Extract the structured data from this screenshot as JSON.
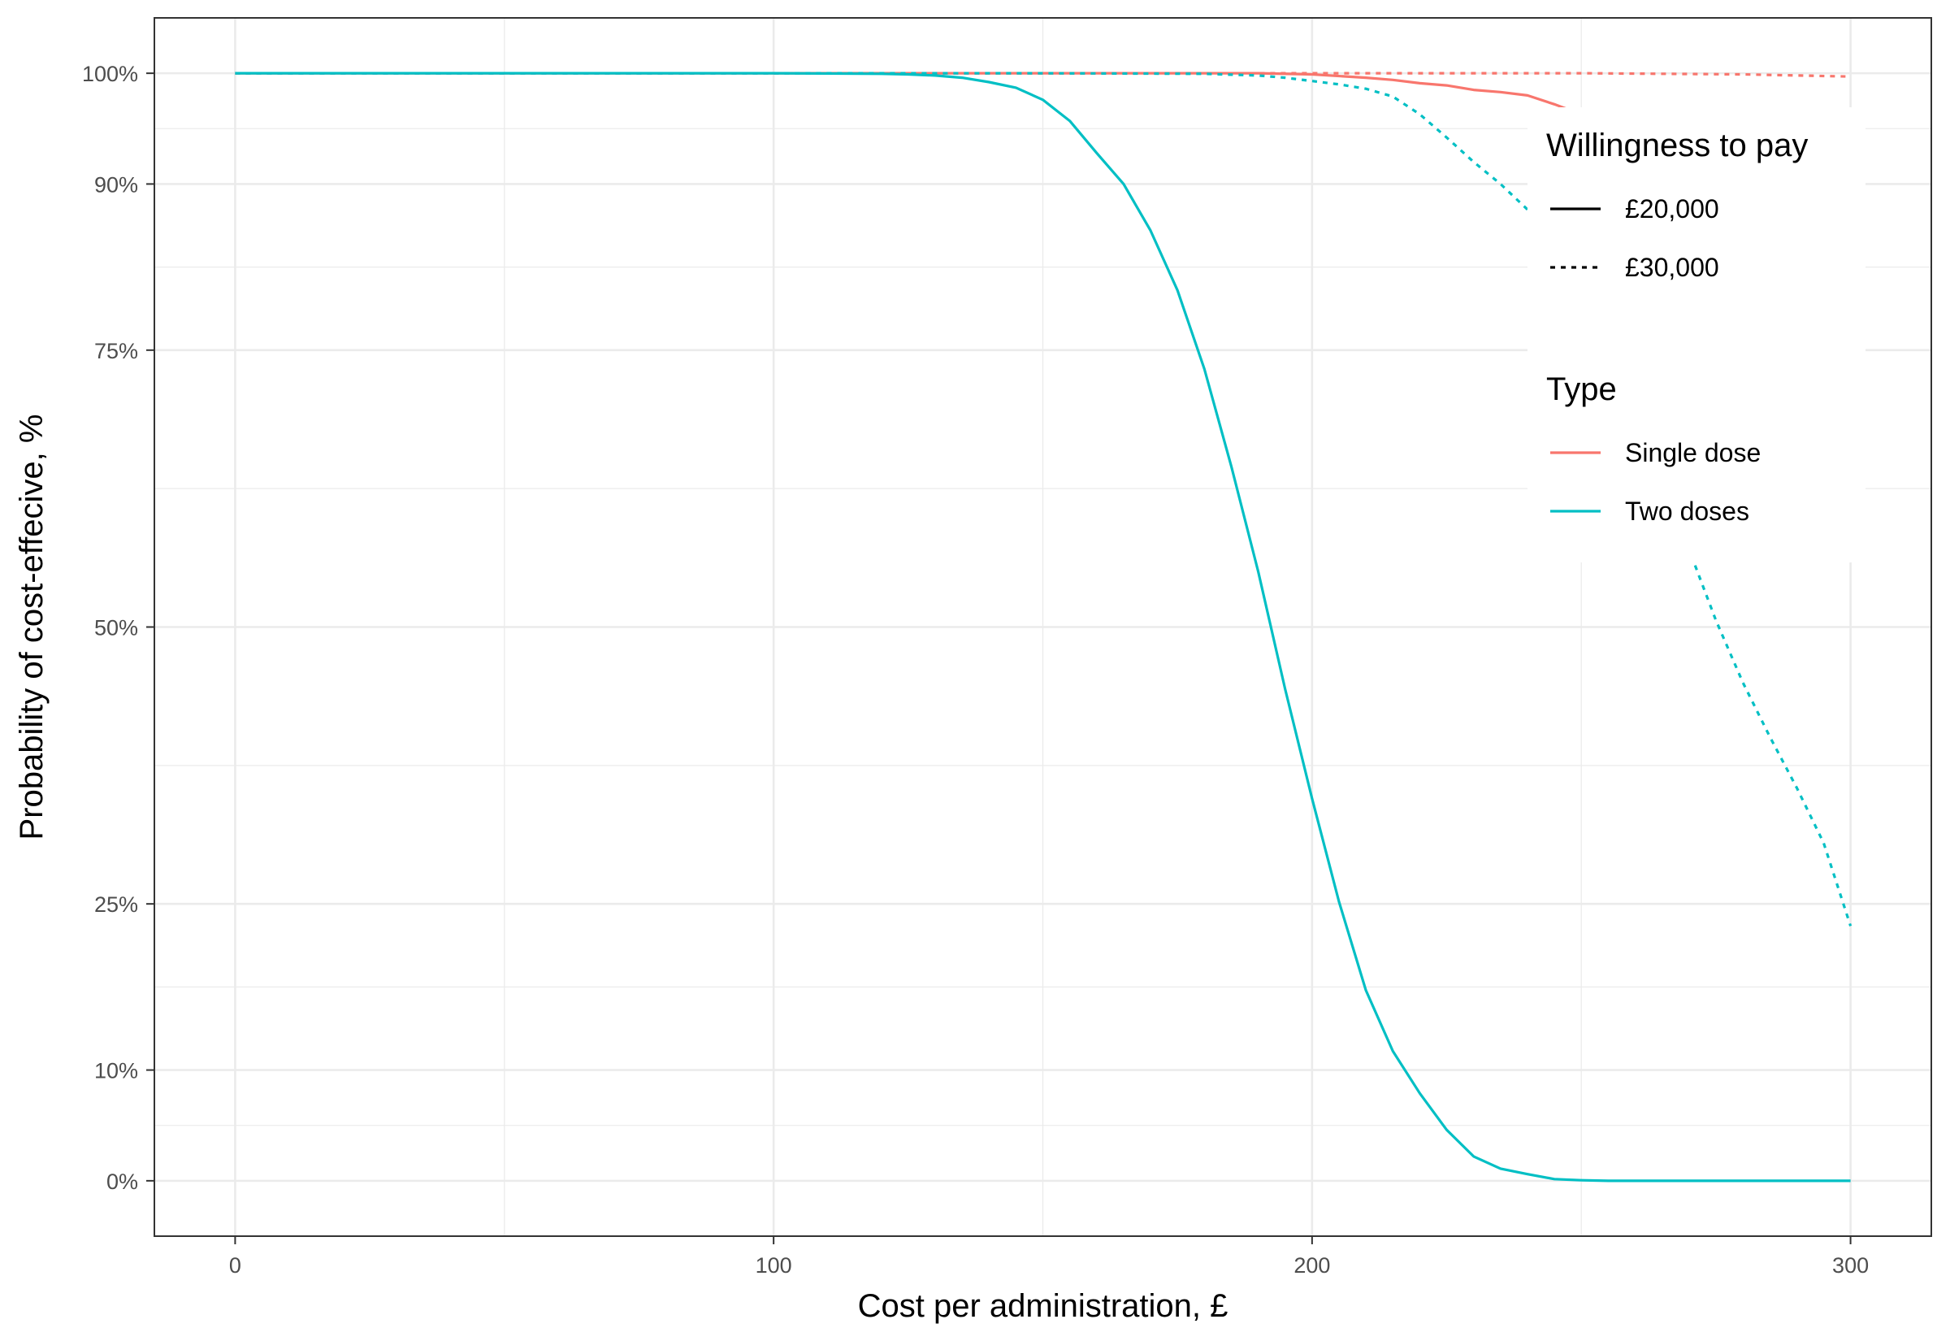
{
  "chart_data": {
    "type": "line",
    "xlabel": "Cost per administration, £",
    "ylabel": "Probability of cost-effecive, %",
    "xlim": [
      -15,
      315
    ],
    "ylim": [
      -5,
      105
    ],
    "x_ticks": [
      0,
      100,
      200,
      300
    ],
    "x_tick_labels": [
      "0",
      "100",
      "200",
      "300"
    ],
    "y_ticks": [
      0,
      10,
      25,
      50,
      75,
      90,
      100
    ],
    "y_tick_labels": [
      "0%",
      "10%",
      "25%",
      "50%",
      "75%",
      "90%",
      "100%"
    ],
    "grid": true,
    "legend_position": "right (inside plot, top-right)",
    "legends": [
      {
        "title": "Willingness to pay",
        "entries": [
          {
            "label": "£20,000",
            "linetype": "solid"
          },
          {
            "label": "£30,000",
            "linetype": "dashed"
          }
        ]
      },
      {
        "title": "Type",
        "entries": [
          {
            "label": "Single dose",
            "color": "#F8766D"
          },
          {
            "label": "Two doses",
            "color": "#00BFC4"
          }
        ]
      }
    ],
    "series": [
      {
        "type": "Single dose",
        "wtp": "£20,000",
        "color": "#F8766D",
        "linetype": "solid",
        "x": [
          0,
          50,
          100,
          130,
          150,
          170,
          190,
          200,
          210,
          215,
          220,
          225,
          230,
          235,
          240,
          245,
          250,
          255,
          260,
          265,
          270,
          275,
          280,
          285,
          290,
          295,
          300
        ],
        "y": [
          100,
          100,
          100,
          100,
          100,
          100,
          100,
          99.9,
          99.6,
          99.4,
          99.1,
          98.9,
          98.5,
          98.3,
          98,
          97.2,
          96.3,
          95.3,
          94,
          92.7,
          91,
          89.1,
          87,
          84.6,
          82,
          80,
          77.3
        ]
      },
      {
        "type": "Single dose",
        "wtp": "£30,000",
        "color": "#F8766D",
        "linetype": "dashed",
        "x": [
          0,
          100,
          150,
          200,
          250,
          280,
          300
        ],
        "y": [
          100,
          100,
          100,
          100,
          100,
          99.9,
          99.7
        ]
      },
      {
        "type": "Two doses",
        "wtp": "£20,000",
        "color": "#00BFC4",
        "linetype": "solid",
        "x": [
          0,
          50,
          100,
          120,
          125,
          130,
          135,
          140,
          145,
          150,
          155,
          160,
          165,
          170,
          175,
          180,
          185,
          190,
          195,
          200,
          205,
          210,
          215,
          220,
          225,
          230,
          235,
          240,
          245,
          250,
          255,
          260,
          270,
          280,
          290,
          300
        ],
        "y": [
          100,
          100,
          100,
          99.95,
          99.9,
          99.8,
          99.6,
          99.2,
          98.7,
          97.6,
          95.7,
          92.8,
          90,
          85.8,
          80.4,
          73.3,
          64.5,
          55,
          44.4,
          34.5,
          25.2,
          17.2,
          11.7,
          7.9,
          4.6,
          2.2,
          1.1,
          0.6,
          0.15,
          0.05,
          0,
          0,
          0,
          0,
          0,
          0
        ]
      },
      {
        "type": "Two doses",
        "wtp": "£30,000",
        "color": "#00BFC4",
        "linetype": "dashed",
        "x": [
          0,
          100,
          150,
          180,
          190,
          195,
          200,
          205,
          210,
          215,
          220,
          225,
          230,
          235,
          240,
          245,
          250,
          255,
          260,
          265,
          270,
          275,
          280,
          285,
          290,
          295,
          300
        ],
        "y": [
          100,
          100,
          100,
          99.95,
          99.8,
          99.6,
          99.3,
          99,
          98.6,
          97.9,
          96.3,
          94.2,
          92,
          90,
          87.7,
          84.8,
          81.3,
          76.5,
          71.3,
          64.5,
          57,
          50.6,
          45,
          40.1,
          35.5,
          30.5,
          23
        ]
      }
    ]
  }
}
